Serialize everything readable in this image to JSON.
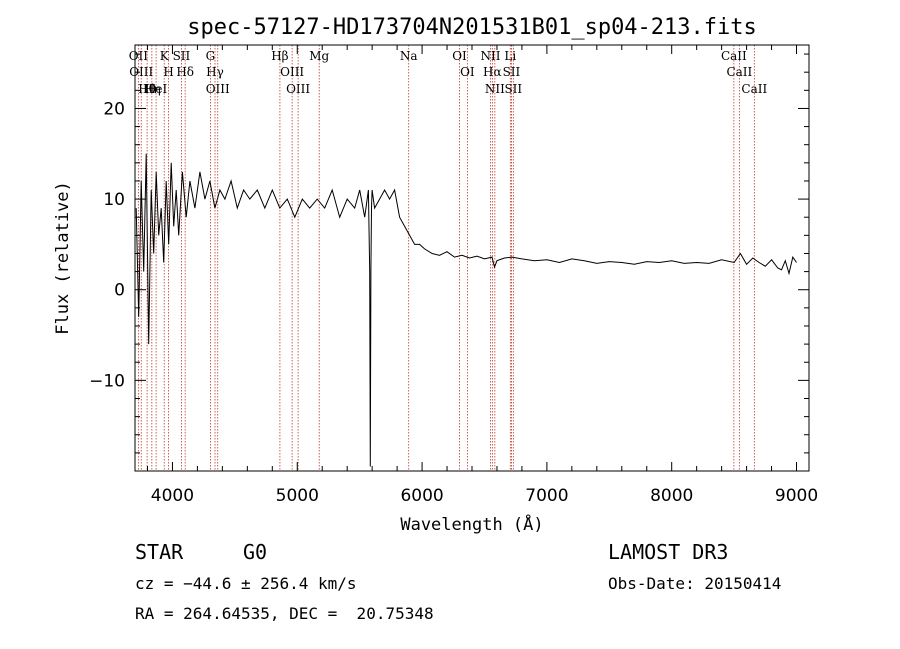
{
  "chart_data": {
    "type": "line",
    "title": "spec-57127-HD173704N201531B01_sp04-213.fits",
    "xlabel": "Wavelength (Å)",
    "ylabel": "Flux (relative)",
    "xlim": [
      3700,
      9100
    ],
    "ylim": [
      -20,
      27
    ],
    "x_ticks": [
      4000,
      5000,
      6000,
      7000,
      8000,
      9000
    ],
    "x_tick_labels": [
      "4000",
      "5000",
      "6000",
      "7000",
      "8000",
      "9000"
    ],
    "y_ticks": [
      -10,
      0,
      10,
      20
    ],
    "y_tick_labels": [
      "−10",
      "0",
      "10",
      "20"
    ],
    "series": [
      {
        "name": "flux",
        "x": [
          3710,
          3730,
          3750,
          3770,
          3790,
          3810,
          3830,
          3850,
          3870,
          3890,
          3910,
          3930,
          3950,
          3970,
          3990,
          4010,
          4030,
          4050,
          4080,
          4110,
          4140,
          4180,
          4220,
          4260,
          4300,
          4340,
          4380,
          4420,
          4470,
          4520,
          4570,
          4620,
          4680,
          4740,
          4800,
          4860,
          4920,
          4980,
          5040,
          5100,
          5160,
          5220,
          5280,
          5340,
          5400,
          5460,
          5500,
          5540,
          5570,
          5580,
          5585,
          5590,
          5595,
          5600,
          5620,
          5660,
          5700,
          5740,
          5780,
          5820,
          5860,
          5900,
          5940,
          5980,
          6020,
          6080,
          6140,
          6200,
          6260,
          6320,
          6380,
          6440,
          6500,
          6560,
          6580,
          6600,
          6660,
          6720,
          6800,
          6900,
          7000,
          7100,
          7200,
          7300,
          7400,
          7500,
          7600,
          7700,
          7800,
          7900,
          8000,
          8100,
          8200,
          8300,
          8400,
          8500,
          8550,
          8600,
          8650,
          8700,
          8750,
          8800,
          8850,
          8880,
          8910,
          8940,
          8970,
          9000
        ],
        "y": [
          9,
          -3,
          12,
          2,
          15,
          -6,
          11,
          4,
          13,
          6,
          9,
          3,
          12,
          5,
          14,
          7,
          11,
          6,
          13,
          8,
          12,
          9,
          13,
          10,
          12,
          9,
          11,
          10,
          12,
          9,
          11,
          10,
          11,
          9,
          11,
          9,
          10,
          8,
          10,
          9,
          10,
          9,
          11,
          8,
          10,
          9,
          11,
          8,
          11,
          2,
          -19.5,
          2,
          9,
          11,
          9,
          10,
          11,
          10,
          11,
          8,
          7,
          6,
          5,
          5,
          4.5,
          4,
          3.8,
          4.2,
          3.6,
          3.8,
          3.5,
          3.7,
          3.4,
          3.6,
          2.5,
          3.2,
          3.5,
          3.6,
          3.4,
          3.2,
          3.3,
          3,
          3.4,
          3.2,
          2.9,
          3.1,
          3,
          2.8,
          3.1,
          3,
          3.2,
          2.9,
          3,
          2.9,
          3.3,
          3,
          4,
          2.8,
          3.5,
          3,
          2.6,
          3.3,
          2.4,
          2.2,
          3.2,
          1.8,
          3.6,
          3
        ]
      }
    ],
    "line_markers": [
      {
        "wl": 3727,
        "label": "OII"
      },
      {
        "wl": 3750,
        "label": "OIII"
      },
      {
        "wl": 3797,
        "label": "Hθ"
      },
      {
        "wl": 3835,
        "label": "Hη"
      },
      {
        "wl": 3869,
        "label": "HeI"
      },
      {
        "wl": 3934,
        "label": "K"
      },
      {
        "wl": 3969,
        "label": "H"
      },
      {
        "wl": 4072,
        "label": "SII"
      },
      {
        "wl": 4102,
        "label": "Hδ"
      },
      {
        "wl": 4304,
        "label": "G"
      },
      {
        "wl": 4341,
        "label": "Hγ"
      },
      {
        "wl": 4363,
        "label": "OIII"
      },
      {
        "wl": 4861,
        "label": "Hβ"
      },
      {
        "wl": 4959,
        "label": "OIII"
      },
      {
        "wl": 5007,
        "label": "OIII"
      },
      {
        "wl": 5176,
        "label": "Mg"
      },
      {
        "wl": 5893,
        "label": "Na"
      },
      {
        "wl": 6300,
        "label": "OI"
      },
      {
        "wl": 6363,
        "label": "OI"
      },
      {
        "wl": 6548,
        "label": "NII"
      },
      {
        "wl": 6563,
        "label": "Hα"
      },
      {
        "wl": 6583,
        "label": "NII"
      },
      {
        "wl": 6707,
        "label": "Li"
      },
      {
        "wl": 6716,
        "label": "SII"
      },
      {
        "wl": 6731,
        "label": "SII"
      },
      {
        "wl": 8498,
        "label": "CaII"
      },
      {
        "wl": 8542,
        "label": "CaII"
      },
      {
        "wl": 8662,
        "label": "CaII"
      }
    ]
  },
  "info": {
    "class_label": "STAR",
    "subclass": "G0",
    "survey": "LAMOST DR3",
    "cz_line": "cz = −44.6 ± 256.4 km/s",
    "obs_date": "Obs-Date: 20150414",
    "coords": "RA = 264.64535, DEC =  20.75348"
  },
  "colors": {
    "line_marker": "#c0392b",
    "spectrum": "#000000",
    "axes": "#000000"
  }
}
